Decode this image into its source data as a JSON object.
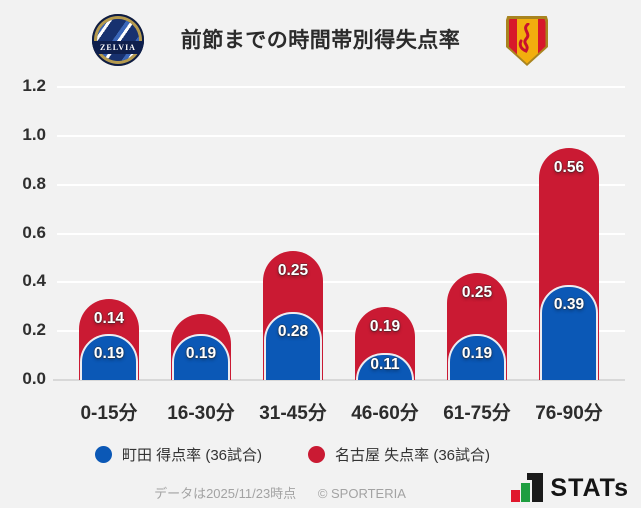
{
  "header": {
    "title": "前節までの時間帯別得失点率",
    "home_crest": "FC町田ゼルビア",
    "home_crest_text": "ZELVIA",
    "away_crest": "名古屋グランパス"
  },
  "chart_data": {
    "type": "bar",
    "variant": "stacked-rounded-top",
    "title": "前節までの時間帯別得失点率",
    "categories": [
      "0-15分",
      "16-30分",
      "31-45分",
      "46-60分",
      "61-75分",
      "76-90分"
    ],
    "series": [
      {
        "name": "町田 得点率 (36試合)",
        "role": "scoring-rate",
        "color": "#0b58b6",
        "values": [
          0.19,
          0.19,
          0.28,
          0.11,
          0.19,
          0.39
        ],
        "labels": [
          "0.19",
          "0.19",
          "0.28",
          "0.11",
          "0.19",
          "0.39"
        ]
      },
      {
        "name": "名古屋 失点率 (36試合)",
        "role": "conceding-rate",
        "color": "#ca1a33",
        "values": [
          0.14,
          0.08,
          0.25,
          0.19,
          0.25,
          0.56
        ],
        "labels": [
          "0.14",
          "",
          "0.25",
          "0.19",
          "0.25",
          "0.56"
        ]
      }
    ],
    "stacking": "stacked",
    "ylim": [
      0,
      1.2
    ],
    "ytick_labels": [
      "1.2",
      "1.0",
      "0.8",
      "0.6",
      "0.4",
      "0.2",
      "0.0"
    ],
    "grid": true,
    "legend_position": "bottom"
  },
  "legend": {
    "items": [
      {
        "label": "町田 得点率 (36試合)",
        "color": "#0b58b6"
      },
      {
        "label": "名古屋 失点率 (36試合)",
        "color": "#ca1a33"
      }
    ]
  },
  "footer": {
    "note": "データは2025/11/23時点",
    "copyright": "© SPORTERIA",
    "stats_logo_text": "STATs"
  },
  "colors": {
    "background": "#f2f2f2",
    "gridline": "#ffffff",
    "baseline": "#d8d8d8",
    "machida_blue": "#0b58b6",
    "nagoya_red": "#ca1a33",
    "text_dark": "#2b2b2b",
    "text_gray": "#a3a3a3"
  }
}
